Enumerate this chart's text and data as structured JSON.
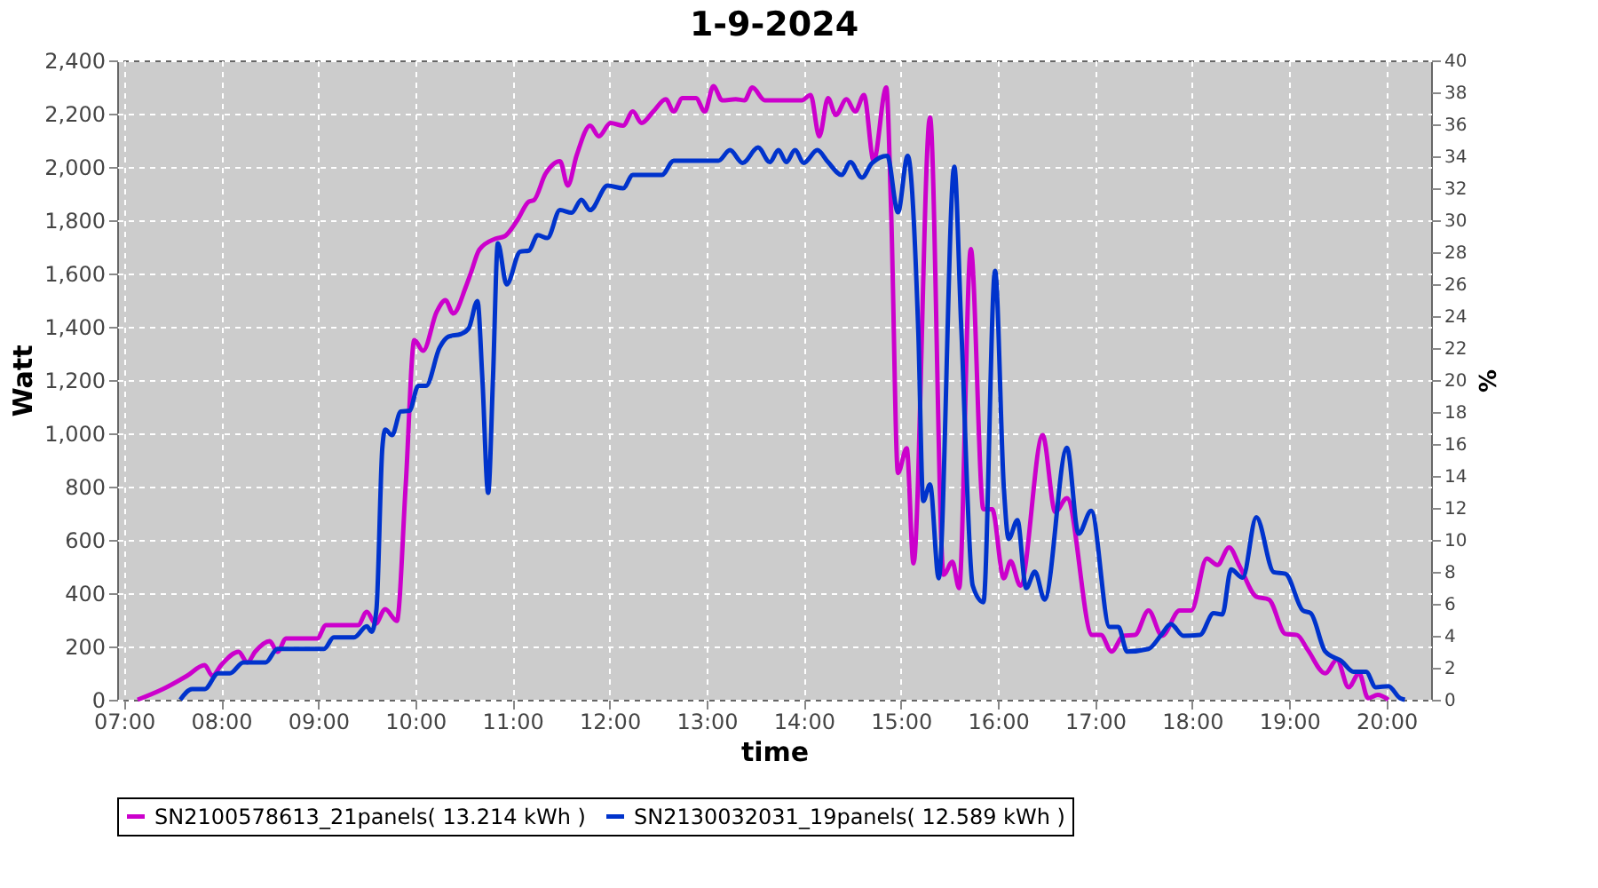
{
  "chart_data": {
    "type": "line",
    "title": "1-9-2024",
    "xlabel": "time",
    "ylabel": "Watt",
    "y2label": "%",
    "xlim": [
      6.93,
      20.46
    ],
    "xticks": [
      {
        "value": 7,
        "label": "07:00"
      },
      {
        "value": 8,
        "label": "08:00"
      },
      {
        "value": 9,
        "label": "09:00"
      },
      {
        "value": 10,
        "label": "10:00"
      },
      {
        "value": 11,
        "label": "11:00"
      },
      {
        "value": 12,
        "label": "12:00"
      },
      {
        "value": 13,
        "label": "13:00"
      },
      {
        "value": 14,
        "label": "14:00"
      },
      {
        "value": 15,
        "label": "15:00"
      },
      {
        "value": 16,
        "label": "16:00"
      },
      {
        "value": 17,
        "label": "17:00"
      },
      {
        "value": 18,
        "label": "18:00"
      },
      {
        "value": 19,
        "label": "19:00"
      },
      {
        "value": 20,
        "label": "20:00"
      }
    ],
    "ylim": [
      0,
      2400
    ],
    "yticks": [
      0,
      200,
      400,
      600,
      800,
      {
        "value": 1000,
        "label": "1,000"
      },
      {
        "value": 1200,
        "label": "1,200"
      },
      {
        "value": 1400,
        "label": "1,400"
      },
      {
        "value": 1600,
        "label": "1,600"
      },
      {
        "value": 1800,
        "label": "1,800"
      },
      {
        "value": 2000,
        "label": "2,000"
      },
      {
        "value": 2200,
        "label": "2,200"
      },
      {
        "value": 2400,
        "label": "2,400"
      }
    ],
    "y2lim": [
      0,
      40
    ],
    "y2ticks": [
      0,
      2,
      4,
      6,
      8,
      10,
      12,
      14,
      16,
      18,
      20,
      22,
      24,
      26,
      28,
      30,
      32,
      34,
      36,
      38,
      40
    ],
    "grid": true,
    "legend": "bottom",
    "marker": "none",
    "line_style": "solid",
    "series": [
      {
        "name": "SN2100578613_21panels( 13.214 kWh )",
        "color": "#cc00cc",
        "x": [
          7.14,
          7.4,
          7.65,
          7.83,
          7.91,
          8.0,
          8.18,
          8.27,
          8.35,
          8.5,
          8.58,
          8.67,
          8.99,
          9.08,
          9.41,
          9.5,
          9.59,
          9.69,
          9.81,
          9.9,
          9.99,
          10.08,
          10.22,
          10.31,
          10.39,
          10.52,
          10.57,
          10.66,
          10.82,
          10.92,
          11.05,
          11.17,
          11.22,
          11.34,
          11.49,
          11.57,
          11.66,
          11.8,
          11.89,
          12.01,
          12.14,
          12.24,
          12.33,
          12.45,
          12.58,
          12.66,
          12.75,
          12.89,
          12.98,
          13.07,
          13.16,
          13.3,
          13.39,
          13.47,
          13.6,
          13.98,
          14.07,
          14.16,
          14.25,
          14.33,
          14.44,
          14.53,
          14.62,
          14.72,
          14.85,
          14.9,
          14.97,
          15.06,
          15.13,
          15.3,
          15.44,
          15.53,
          15.6,
          15.72,
          15.85,
          15.94,
          16.06,
          16.13,
          16.23,
          16.46,
          16.59,
          16.71,
          16.97,
          17.06,
          17.17,
          17.29,
          17.41,
          17.55,
          17.69,
          17.87,
          17.99,
          18.15,
          18.26,
          18.38,
          18.49,
          18.66,
          18.79,
          18.96,
          19.08,
          19.19,
          19.37,
          19.49,
          19.61,
          19.72,
          19.81,
          19.91,
          20.02
        ],
        "values": [
          0,
          40,
          90,
          130,
          90,
          130,
          180,
          140,
          180,
          220,
          180,
          230,
          230,
          280,
          280,
          330,
          285,
          340,
          296,
          798,
          1350,
          1310,
          1456,
          1500,
          1450,
          1550,
          1600,
          1690,
          1730,
          1740,
          1800,
          1870,
          1875,
          1974,
          2022,
          1930,
          2042,
          2155,
          2115,
          2165,
          2155,
          2208,
          2165,
          2208,
          2254,
          2208,
          2258,
          2258,
          2208,
          2303,
          2250,
          2254,
          2250,
          2298,
          2250,
          2250,
          2270,
          2115,
          2258,
          2195,
          2254,
          2208,
          2270,
          2023,
          2298,
          1830,
          851,
          944,
          512,
          2186,
          469,
          518,
          419,
          1692,
          715,
          715,
          456,
          520,
          428,
          993,
          705,
          757,
          243,
          243,
          181,
          240,
          243,
          335,
          240,
          335,
          335,
          530,
          506,
          572,
          500,
          387,
          376,
          247,
          243,
          187,
          99,
          150,
          47,
          99,
          6,
          18,
          0
        ]
      },
      {
        "name": "SN2130032031_19panels( 12.589 kWh )",
        "color": "#0033cc",
        "x": [
          7.58,
          7.7,
          7.83,
          7.97,
          8.09,
          8.23,
          8.46,
          8.58,
          8.88,
          9.06,
          9.16,
          9.37,
          9.5,
          9.55,
          9.6,
          9.66,
          9.69,
          9.76,
          9.85,
          9.94,
          10.03,
          10.11,
          10.25,
          10.34,
          10.47,
          10.55,
          10.64,
          10.69,
          10.75,
          10.8,
          10.85,
          10.94,
          11.08,
          11.17,
          11.26,
          11.36,
          11.49,
          11.61,
          11.71,
          11.8,
          11.98,
          12.14,
          12.24,
          12.54,
          12.66,
          13.12,
          13.24,
          13.37,
          13.53,
          13.65,
          13.74,
          13.82,
          13.91,
          14.0,
          14.14,
          14.25,
          14.39,
          14.48,
          14.6,
          14.7,
          14.86,
          14.97,
          15.07,
          15.18,
          15.23,
          15.3,
          15.39,
          15.55,
          15.62,
          15.74,
          15.85,
          15.97,
          16.06,
          16.11,
          16.2,
          16.29,
          16.38,
          16.48,
          16.71,
          16.83,
          16.96,
          17.15,
          17.24,
          17.33,
          17.55,
          17.68,
          17.78,
          17.91,
          18.08,
          18.22,
          18.31,
          18.4,
          18.52,
          18.66,
          18.84,
          18.96,
          19.14,
          19.22,
          19.37,
          19.54,
          19.66,
          19.79,
          19.89,
          20.02,
          20.14,
          20.19
        ],
        "values": [
          0,
          40,
          40,
          99,
          99,
          140,
          140,
          191,
          191,
          191,
          234,
          234,
          276,
          255,
          340,
          944,
          1014,
          993,
          1082,
          1085,
          1178,
          1178,
          1322,
          1363,
          1373,
          1394,
          1497,
          1209,
          777,
          1209,
          1713,
          1559,
          1682,
          1686,
          1744,
          1733,
          1838,
          1828,
          1877,
          1838,
          1930,
          1920,
          1970,
          1970,
          2023,
          2023,
          2063,
          2015,
          2073,
          2018,
          2063,
          2018,
          2063,
          2015,
          2063,
          2018,
          1970,
          2018,
          1960,
          2013,
          2042,
          1830,
          2042,
          1375,
          746,
          808,
          456,
          2001,
          1415,
          428,
          366,
          1610,
          798,
          604,
          674,
          419,
          481,
          376,
          946,
          623,
          709,
          273,
          273,
          181,
          191,
          243,
          284,
          240,
          243,
          325,
          320,
          489,
          458,
          685,
          479,
          473,
          335,
          325,
          181,
          144,
          105,
          105,
          47,
          51,
          6,
          0
        ]
      }
    ]
  }
}
